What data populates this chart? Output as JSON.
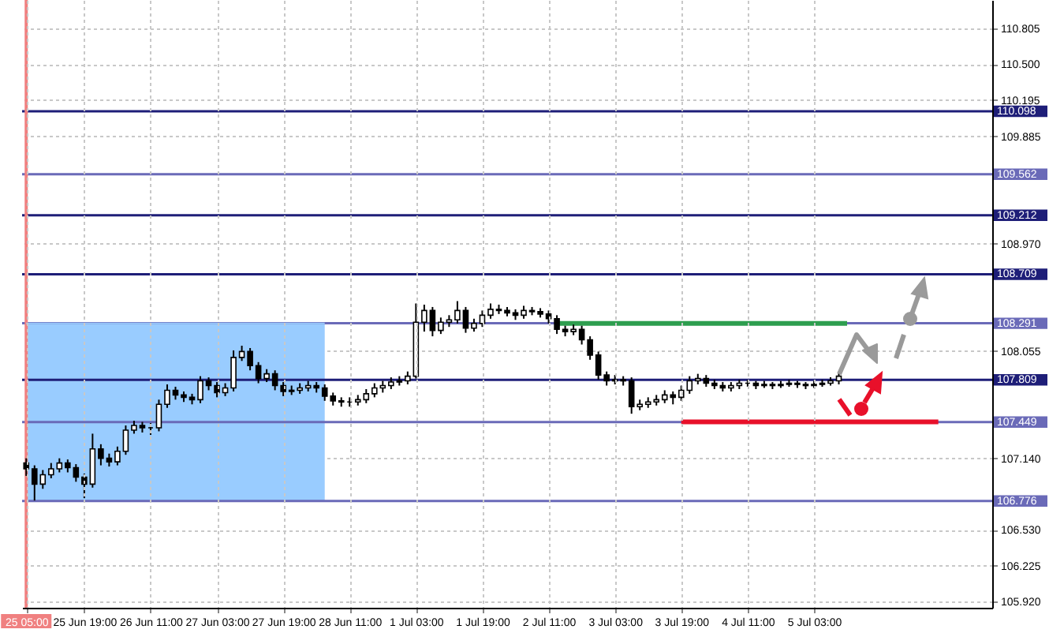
{
  "chart_data": {
    "type": "candlestick",
    "categories": [
      "25 05:00",
      null,
      null,
      null,
      null,
      null,
      null,
      "25 Jun 19:00",
      null,
      null,
      null,
      null,
      null,
      null,
      null,
      "26 Jun 11:00",
      null,
      null,
      null,
      null,
      null,
      null,
      null,
      "27 Jun 03:00",
      null,
      null,
      null,
      null,
      null,
      null,
      null,
      "27 Jun 19:00",
      null,
      null,
      null,
      null,
      null,
      null,
      null,
      "28 Jun 11:00",
      null,
      null,
      null,
      null,
      null,
      null,
      null,
      "1 Jul 03:00",
      null,
      null,
      null,
      null,
      null,
      null,
      null,
      "1 Jul 19:00",
      null,
      null,
      null,
      null,
      null,
      null,
      null,
      "2 Jul 11:00",
      null,
      null,
      null,
      null,
      null,
      null,
      null,
      "3 Jul 03:00",
      null,
      null,
      null,
      null,
      null,
      null,
      null,
      "3 Jul 19:00",
      null,
      null,
      null,
      null,
      null,
      null,
      null,
      "4 Jul 11:00",
      null,
      null,
      null,
      null,
      null,
      null,
      null,
      "5 Jul 03:00",
      null,
      null,
      null,
      null,
      null,
      null,
      null,
      null,
      null,
      null,
      null,
      null,
      null,
      null,
      null,
      null,
      null,
      null,
      null,
      null,
      null
    ],
    "ohlc": [
      [
        107.1,
        107.14,
        106.99,
        107.05
      ],
      [
        107.05,
        107.08,
        106.78,
        106.92
      ],
      [
        106.92,
        107.04,
        106.88,
        107.0
      ],
      [
        107.0,
        107.1,
        106.97,
        107.05
      ],
      [
        107.05,
        107.14,
        107.02,
        107.1
      ],
      [
        107.1,
        107.13,
        107.02,
        107.06
      ],
      [
        107.06,
        107.09,
        106.94,
        106.98
      ],
      [
        106.98,
        107.01,
        106.8,
        106.92
      ],
      [
        106.92,
        107.35,
        106.89,
        107.22
      ],
      [
        107.22,
        107.26,
        107.08,
        107.14
      ],
      [
        107.14,
        107.18,
        107.07,
        107.11
      ],
      [
        107.11,
        107.24,
        107.08,
        107.2
      ],
      [
        107.2,
        107.42,
        107.17,
        107.38
      ],
      [
        107.38,
        107.46,
        107.35,
        107.42
      ],
      [
        107.42,
        107.45,
        107.36,
        107.4
      ],
      [
        107.4,
        107.44,
        107.34,
        107.4
      ],
      [
        107.4,
        107.64,
        107.37,
        107.6
      ],
      [
        107.6,
        107.77,
        107.57,
        107.72
      ],
      [
        107.72,
        107.75,
        107.64,
        107.68
      ],
      [
        107.68,
        107.71,
        107.62,
        107.66
      ],
      [
        107.66,
        107.69,
        107.6,
        107.64
      ],
      [
        107.64,
        107.84,
        107.61,
        107.8
      ],
      [
        107.8,
        107.83,
        107.72,
        107.76
      ],
      [
        107.76,
        107.79,
        107.66,
        107.7
      ],
      [
        107.7,
        107.78,
        107.67,
        107.74
      ],
      [
        107.74,
        108.06,
        107.71,
        108.0
      ],
      [
        108.0,
        108.1,
        107.97,
        108.05
      ],
      [
        108.05,
        108.08,
        107.89,
        107.93
      ],
      [
        107.93,
        107.96,
        107.78,
        107.82
      ],
      [
        107.82,
        107.9,
        107.79,
        107.86
      ],
      [
        107.86,
        107.89,
        107.72,
        107.76
      ],
      [
        107.76,
        107.79,
        107.67,
        107.71
      ],
      [
        107.71,
        107.76,
        107.68,
        107.72
      ],
      [
        107.72,
        107.78,
        107.69,
        107.74
      ],
      [
        107.74,
        107.8,
        107.71,
        107.76
      ],
      [
        107.76,
        107.79,
        107.7,
        107.74
      ],
      [
        107.74,
        107.77,
        107.63,
        107.67
      ],
      [
        107.67,
        107.7,
        107.59,
        107.63
      ],
      [
        107.63,
        107.66,
        107.58,
        107.62
      ],
      [
        107.62,
        107.66,
        107.58,
        107.62
      ],
      [
        107.62,
        107.68,
        107.59,
        107.64
      ],
      [
        107.64,
        107.73,
        107.61,
        107.69
      ],
      [
        107.69,
        107.78,
        107.66,
        107.74
      ],
      [
        107.74,
        107.8,
        107.7,
        107.76
      ],
      [
        107.76,
        107.83,
        107.73,
        107.79
      ],
      [
        107.79,
        107.84,
        107.76,
        107.8
      ],
      [
        107.8,
        107.88,
        107.77,
        107.84
      ],
      [
        107.84,
        108.46,
        107.82,
        108.3
      ],
      [
        108.3,
        108.45,
        108.22,
        108.4
      ],
      [
        108.4,
        108.43,
        108.18,
        108.23
      ],
      [
        108.23,
        108.34,
        108.2,
        108.3
      ],
      [
        108.3,
        108.36,
        108.26,
        108.32
      ],
      [
        108.32,
        108.48,
        108.29,
        108.4
      ],
      [
        108.4,
        108.43,
        108.21,
        108.25
      ],
      [
        108.25,
        108.33,
        108.22,
        108.29
      ],
      [
        108.29,
        108.4,
        108.26,
        108.36
      ],
      [
        108.36,
        108.46,
        108.33,
        108.41
      ],
      [
        108.41,
        108.45,
        108.37,
        108.4
      ],
      [
        108.4,
        108.43,
        108.35,
        108.38
      ],
      [
        108.38,
        108.41,
        108.32,
        108.36
      ],
      [
        108.36,
        108.44,
        108.33,
        108.4
      ],
      [
        108.4,
        108.43,
        108.36,
        108.39
      ],
      [
        108.39,
        108.42,
        108.34,
        108.37
      ],
      [
        108.37,
        108.4,
        108.29,
        108.33
      ],
      [
        108.33,
        108.36,
        108.2,
        108.24
      ],
      [
        108.24,
        108.27,
        108.18,
        108.22
      ],
      [
        108.22,
        108.28,
        108.19,
        108.24
      ],
      [
        108.24,
        108.27,
        108.11,
        108.15
      ],
      [
        108.15,
        108.18,
        107.98,
        108.02
      ],
      [
        108.02,
        108.05,
        107.81,
        107.85
      ],
      [
        107.85,
        107.88,
        107.76,
        107.8
      ],
      [
        107.8,
        107.85,
        107.77,
        107.81
      ],
      [
        107.81,
        107.84,
        107.76,
        107.8
      ],
      [
        107.8,
        107.83,
        107.52,
        107.58
      ],
      [
        107.58,
        107.64,
        107.55,
        107.6
      ],
      [
        107.6,
        107.66,
        107.57,
        107.62
      ],
      [
        107.62,
        107.68,
        107.59,
        107.64
      ],
      [
        107.64,
        107.72,
        107.61,
        107.68
      ],
      [
        107.68,
        107.71,
        107.6,
        107.66
      ],
      [
        107.66,
        107.76,
        107.63,
        107.72
      ],
      [
        107.72,
        107.84,
        107.69,
        107.8
      ],
      [
        107.8,
        107.86,
        107.77,
        107.82
      ],
      [
        107.82,
        107.85,
        107.75,
        107.78
      ],
      [
        107.78,
        107.81,
        107.73,
        107.76
      ],
      [
        107.76,
        107.79,
        107.71,
        107.74
      ],
      [
        107.74,
        107.79,
        107.71,
        107.76
      ],
      [
        107.76,
        107.81,
        107.73,
        107.78
      ],
      [
        107.78,
        107.81,
        107.75,
        107.78
      ],
      [
        107.78,
        107.8,
        107.73,
        107.76
      ],
      [
        107.76,
        107.8,
        107.74,
        107.77
      ],
      [
        107.77,
        107.79,
        107.73,
        107.76
      ],
      [
        107.76,
        107.8,
        107.74,
        107.77
      ],
      [
        107.77,
        107.81,
        107.75,
        107.78
      ],
      [
        107.78,
        107.8,
        107.74,
        107.77
      ],
      [
        107.77,
        107.79,
        107.73,
        107.76
      ],
      [
        107.76,
        107.8,
        107.74,
        107.77
      ],
      [
        107.77,
        107.81,
        107.75,
        107.78
      ],
      [
        107.78,
        107.83,
        107.76,
        107.8
      ],
      [
        107.8,
        107.88,
        107.77,
        107.84
      ],
      null,
      null,
      null,
      null,
      null,
      null,
      null,
      null,
      null,
      null,
      null,
      null,
      null,
      null,
      null,
      null,
      null,
      null
    ],
    "series": [
      {
        "type": "line",
        "color": "#99ccff",
        "upper": [
          108.29,
          108.29,
          108.29,
          108.29,
          108.29,
          108.29,
          108.29,
          108.29,
          108.29,
          108.29,
          108.29,
          108.29,
          108.29,
          108.29,
          108.29,
          108.29,
          108.29,
          108.29,
          108.29,
          108.29,
          108.29,
          108.29,
          108.29,
          108.29,
          108.29,
          108.29,
          108.29,
          108.29,
          108.29,
          108.29,
          108.29,
          108.29,
          108.29,
          108.29,
          108.29,
          108.29,
          108.29,
          null,
          null,
          null,
          null,
          null,
          null,
          null,
          null,
          null,
          null,
          null,
          null,
          null,
          null,
          null,
          null,
          null,
          null,
          null,
          null,
          null,
          null,
          null,
          null,
          null,
          null,
          null,
          null,
          null,
          null,
          null,
          null,
          null,
          null,
          null,
          null,
          null,
          null,
          null,
          null,
          null,
          null,
          null,
          null,
          null,
          null,
          null,
          null,
          null,
          null,
          null,
          null,
          null,
          null,
          null,
          null,
          null,
          null,
          null,
          null,
          null,
          null,
          null,
          null,
          null,
          null,
          null,
          null,
          null,
          null,
          null,
          null,
          null,
          null,
          null,
          null,
          null,
          null,
          null,
          null
        ],
        "values": [
          108.29,
          108.29,
          108.29,
          108.29,
          108.29,
          108.29,
          108.29,
          108.29,
          108.29,
          108.29,
          108.29,
          108.29,
          108.29,
          108.29,
          108.29,
          108.29,
          108.29,
          108.29,
          108.29,
          108.29,
          108.29,
          108.29,
          108.29,
          108.29,
          108.29,
          108.29,
          108.29,
          108.29,
          108.29,
          108.29,
          108.29,
          108.29,
          108.29,
          108.29,
          108.29,
          108.29,
          108.29,
          null,
          null,
          null,
          null,
          null,
          null,
          null,
          null,
          null,
          null,
          null,
          null,
          null,
          null,
          null,
          null,
          null,
          null,
          null,
          null,
          null,
          null,
          null,
          null,
          null,
          null,
          null,
          null,
          null,
          null,
          null,
          null,
          null,
          null,
          null,
          null,
          null,
          null,
          null,
          null,
          null,
          null,
          null,
          null,
          null,
          null,
          null,
          null,
          null,
          null,
          null,
          null,
          null,
          null,
          null,
          null,
          null,
          null,
          null,
          null,
          null,
          null,
          null,
          null,
          null,
          null,
          null,
          null,
          null,
          null,
          null,
          null,
          null,
          null,
          null,
          null,
          null,
          null,
          null,
          null
        ],
        "lower": [
          106.78,
          106.78,
          106.78,
          106.78,
          106.78,
          106.78,
          106.78,
          106.78,
          106.78,
          106.78,
          106.78,
          106.78,
          106.78,
          106.78,
          106.78,
          106.78,
          106.78,
          106.78,
          106.78,
          106.78,
          106.78,
          106.78,
          106.78,
          106.78,
          106.78,
          106.78,
          106.78,
          106.78,
          106.78,
          106.78,
          106.78,
          106.78,
          106.78,
          106.78,
          106.78,
          106.78,
          106.78,
          null,
          null,
          null,
          null,
          null,
          null,
          null,
          null,
          null,
          null,
          null,
          null,
          null,
          null,
          null,
          null,
          null,
          null,
          null,
          null,
          null,
          null,
          null,
          null,
          null,
          null,
          null,
          null,
          null,
          null,
          null,
          null,
          null,
          null,
          null,
          null,
          null,
          null,
          null,
          null,
          null,
          null,
          null,
          null,
          null,
          null,
          null,
          null,
          null,
          null,
          null,
          null,
          null,
          null,
          null,
          null,
          null,
          null,
          null,
          null,
          null,
          null,
          null,
          null,
          null,
          null,
          null,
          null,
          null,
          null,
          null,
          null,
          null,
          null,
          null,
          null,
          null,
          null,
          null,
          null
        ]
      },
      {
        "type": "line",
        "color": "#2e9e4f",
        "values": [
          null,
          null,
          null,
          null,
          null,
          null,
          null,
          null,
          null,
          null,
          null,
          null,
          null,
          null,
          null,
          null,
          null,
          null,
          null,
          null,
          null,
          null,
          null,
          null,
          null,
          null,
          null,
          null,
          null,
          null,
          null,
          null,
          null,
          null,
          null,
          null,
          null,
          null,
          null,
          null,
          null,
          null,
          null,
          null,
          null,
          null,
          null,
          null,
          null,
          null,
          null,
          null,
          null,
          null,
          null,
          null,
          null,
          null,
          null,
          null,
          null,
          null,
          null,
          null,
          108.29,
          108.29,
          108.29,
          108.29,
          108.29,
          108.29,
          108.29,
          108.29,
          108.29,
          108.29,
          108.29,
          108.29,
          108.29,
          108.29,
          108.29,
          108.29,
          108.29,
          108.29,
          108.29,
          108.29,
          108.29,
          108.29,
          108.29,
          108.29,
          108.29,
          108.29,
          108.29,
          108.29,
          108.29,
          108.29,
          108.29,
          108.29,
          108.29,
          108.29,
          108.29,
          108.29,
          null,
          null,
          null,
          null,
          null,
          null,
          null,
          null,
          null,
          null,
          null,
          null,
          null,
          null,
          null,
          null,
          null
        ]
      },
      {
        "type": "line",
        "color": "#e8102a",
        "values": [
          null,
          null,
          null,
          null,
          null,
          null,
          null,
          null,
          null,
          null,
          null,
          null,
          null,
          null,
          null,
          null,
          null,
          null,
          null,
          null,
          null,
          null,
          null,
          null,
          null,
          null,
          null,
          null,
          null,
          null,
          null,
          null,
          null,
          null,
          null,
          null,
          null,
          null,
          null,
          null,
          null,
          null,
          null,
          null,
          null,
          null,
          null,
          null,
          null,
          null,
          null,
          null,
          null,
          null,
          null,
          null,
          null,
          null,
          null,
          null,
          null,
          null,
          null,
          null,
          null,
          null,
          null,
          null,
          null,
          null,
          null,
          null,
          null,
          null,
          null,
          null,
          null,
          null,
          null,
          107.45,
          107.45,
          107.45,
          107.45,
          107.45,
          107.45,
          107.45,
          107.45,
          107.45,
          107.45,
          107.45,
          107.45,
          107.45,
          107.45,
          107.45,
          107.45,
          107.45,
          107.45,
          107.45,
          107.45,
          107.45,
          107.45,
          107.45,
          107.45,
          107.45,
          107.45,
          107.45,
          107.45,
          107.45,
          107.45,
          107.45,
          107.45,
          null,
          null,
          null,
          null,
          null,
          null
        ]
      }
    ],
    "ylim": [
      105.866,
      111.047
    ],
    "yticks": [
      {
        "value": 105.92,
        "label": "105.920"
      },
      106.225,
      {
        "value": 106.53,
        "label": "106.530"
      },
      {
        "value": 107.14,
        "label": "107.140"
      },
      108.055,
      {
        "value": 108.97,
        "label": "108.970"
      },
      109.885,
      110.195,
      {
        "value": 110.5,
        "label": "110.500"
      },
      110.805
    ],
    "grid": true,
    "ref_lines": [
      {
        "axis": "y",
        "value": 110.098,
        "label": "110.098",
        "color": "#1e1e78"
      },
      {
        "axis": "y",
        "value": 109.562,
        "label": "109.562",
        "color": "#6a6ab8"
      },
      {
        "axis": "y",
        "value": 109.212,
        "label": "109.212",
        "color": "#1e1e78"
      },
      {
        "axis": "y",
        "value": 108.709,
        "label": "108.709",
        "color": "#1e1e78"
      },
      {
        "axis": "y",
        "value": 108.291,
        "label": "108.291",
        "color": "#6a6ab8"
      },
      {
        "axis": "y",
        "value": 107.809,
        "label": "107.809",
        "color": "#1e1e78"
      },
      {
        "axis": "y",
        "value": 107.449,
        "label": "107.449",
        "color": "#6a6ab8"
      },
      {
        "axis": "y",
        "value": 106.776,
        "label": "106.776",
        "color": "#6a6ab8"
      },
      {
        "axis": "x",
        "value": "25 05:00",
        "color": "#f08080"
      }
    ]
  }
}
